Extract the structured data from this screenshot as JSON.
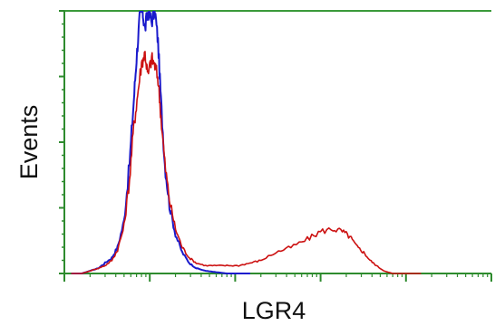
{
  "chart_data": {
    "type": "line",
    "title": "",
    "xlabel": "LGR4",
    "ylabel": "Events",
    "x_scale": "log",
    "xlim": [
      1,
      100000
    ],
    "ylim": [
      0,
      100
    ],
    "grid": false,
    "legend": "none",
    "colors": {
      "axes": "#2e8b2e",
      "frame": "#3a9a3a",
      "text": "#111111"
    },
    "series": [
      {
        "color": "#1a1acc",
        "x": [
          1.2,
          1.6,
          2.0,
          2.5,
          3.0,
          3.6,
          4.2,
          5.0,
          5.8,
          6.5,
          7.0,
          7.6,
          8.2,
          8.8,
          9.5,
          10.5,
          11.5,
          12.5,
          13.5,
          15,
          17,
          20,
          24,
          29,
          35,
          45,
          60,
          80,
          110,
          150
        ],
        "y": [
          0,
          0,
          1,
          2,
          4,
          6,
          10,
          20,
          42,
          66,
          82,
          97,
          100,
          93,
          100,
          96,
          100,
          88,
          66,
          42,
          26,
          15,
          8,
          4,
          2,
          1,
          0.5,
          0,
          0,
          0
        ]
      },
      {
        "color": "#cc1111",
        "x": [
          1.2,
          1.6,
          2.0,
          2.5,
          3.0,
          3.6,
          4.2,
          5.0,
          5.8,
          6.5,
          7.2,
          8.0,
          8.8,
          9.5,
          10.5,
          11.5,
          12.5,
          13.5,
          15,
          17,
          20,
          24,
          29,
          35,
          45,
          60,
          80,
          110,
          150,
          200,
          300,
          450,
          700,
          1000,
          1400,
          1800,
          2200,
          2700,
          3200,
          3800,
          4500,
          5500,
          7000,
          9000,
          12000,
          15000
        ],
        "y": [
          0,
          0,
          1,
          2,
          3,
          5,
          9,
          18,
          36,
          56,
          68,
          80,
          84,
          75,
          82,
          79,
          74,
          60,
          42,
          28,
          17,
          10,
          6,
          4,
          3,
          3,
          3,
          3,
          4,
          5,
          8,
          10,
          13,
          16,
          17,
          16,
          14,
          10,
          8,
          5,
          3,
          1,
          0,
          0,
          0,
          0
        ]
      }
    ]
  }
}
